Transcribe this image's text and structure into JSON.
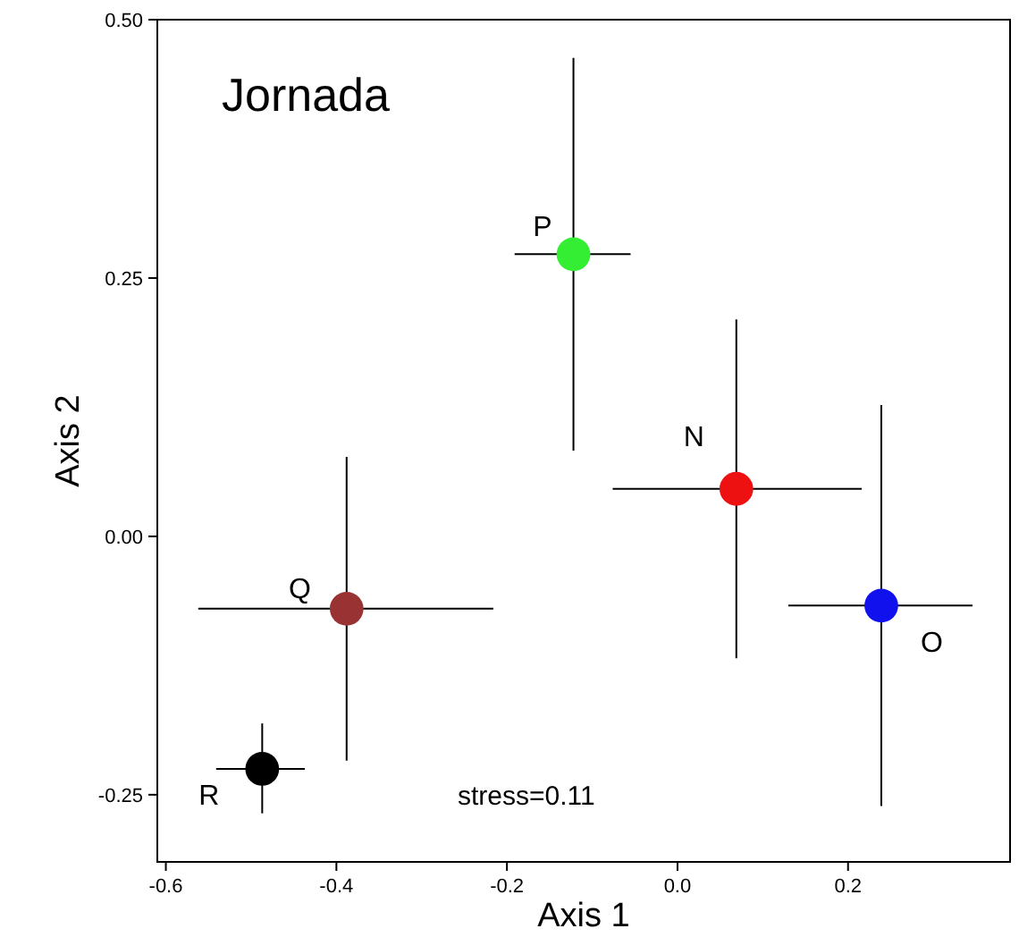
{
  "chart_data": {
    "type": "scatter",
    "title": "Jornada",
    "xlabel": "Axis 1",
    "ylabel": "Axis 2",
    "xlim": [
      -0.61,
      0.39
    ],
    "ylim": [
      -0.315,
      0.5
    ],
    "xticks": [
      -0.6,
      -0.4,
      -0.2,
      {
        "value": 0,
        "label": "0.0"
      },
      0.2
    ],
    "yticks": [
      {
        "value": -0.25,
        "label": "-0.25"
      },
      {
        "value": 0,
        "label": "0.00"
      },
      {
        "value": 0.25,
        "label": "0.25"
      },
      {
        "value": 0.5,
        "label": "0.50"
      }
    ],
    "grid": false,
    "marker": "circle",
    "annotations": [
      "stress=0.11"
    ],
    "series": [
      {
        "name": "P",
        "color": "#33ee33",
        "x": [
          -0.122
        ],
        "values": [
          0.273
        ],
        "errors": [
          [
            0.083,
            0.463
          ]
        ],
        "xerrors": [
          [
            -0.191,
            -0.055
          ]
        ]
      },
      {
        "name": "N",
        "color": "#ee1111",
        "x": [
          0.069
        ],
        "values": [
          0.046
        ],
        "errors": [
          [
            -0.118,
            0.21
          ]
        ],
        "xerrors": [
          [
            -0.076,
            0.216
          ]
        ]
      },
      {
        "name": "O",
        "color": "#1111ee",
        "x": [
          0.239
        ],
        "values": [
          -0.067
        ],
        "errors": [
          [
            -0.261,
            0.127
          ]
        ],
        "xerrors": [
          [
            0.13,
            0.346
          ]
        ]
      },
      {
        "name": "Q",
        "color": "#993333",
        "x": [
          -0.388
        ],
        "values": [
          -0.07
        ],
        "errors": [
          [
            -0.217,
            0.077
          ]
        ],
        "xerrors": [
          [
            -0.562,
            -0.216
          ]
        ]
      },
      {
        "name": "R",
        "color": "#000000",
        "x": [
          -0.487
        ],
        "values": [
          -0.225
        ],
        "errors": [
          [
            -0.268,
            -0.181
          ]
        ],
        "xerrors": [
          [
            -0.541,
            -0.437
          ]
        ]
      }
    ]
  }
}
